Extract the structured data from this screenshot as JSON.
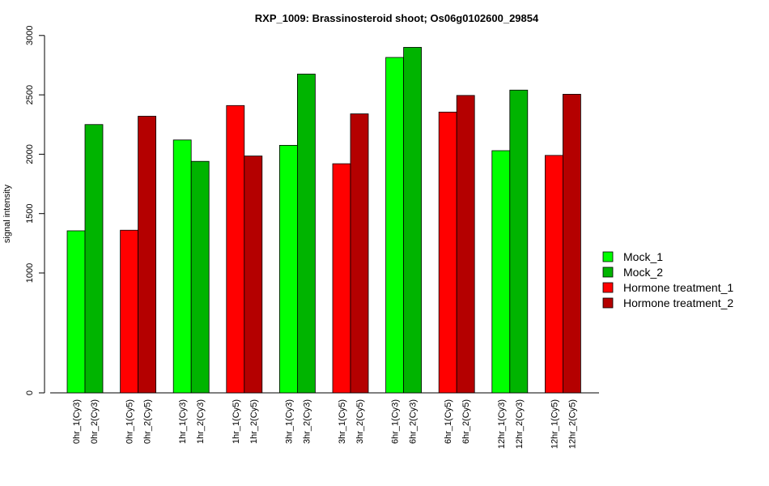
{
  "chart_data": {
    "type": "bar",
    "title": "RXP_1009: Brassinosteroid shoot; Os06g0102600_29854",
    "xlabel": "",
    "ylabel": "signal intensity",
    "ylim": [
      0,
      3000
    ],
    "y_ticks": [
      "0",
      "1000",
      "1500",
      "2000",
      "2500",
      "3000"
    ],
    "grid": false,
    "legend_position": "right",
    "series": [
      {
        "name": "Mock_1",
        "color": "#00ff00"
      },
      {
        "name": "Mock_2",
        "color": "#00b400"
      },
      {
        "name": "Hormone treatment_1",
        "color": "#ff0000"
      },
      {
        "name": "Hormone treatment_2",
        "color": "#b40000"
      }
    ],
    "groups": [
      {
        "bars": [
          {
            "label": "0hr_1(Cy3)",
            "value": 1355,
            "series": 0
          },
          {
            "label": "0hr_2(Cy3)",
            "value": 2250,
            "series": 1
          }
        ]
      },
      {
        "bars": [
          {
            "label": "0hr_1(Cy5)",
            "value": 1360,
            "series": 2
          },
          {
            "label": "0hr_2(Cy5)",
            "value": 2320,
            "series": 3
          }
        ]
      },
      {
        "bars": [
          {
            "label": "1hr_1(Cy3)",
            "value": 2120,
            "series": 0
          },
          {
            "label": "1hr_2(Cy3)",
            "value": 1940,
            "series": 1
          }
        ]
      },
      {
        "bars": [
          {
            "label": "1hr_1(Cy5)",
            "value": 2410,
            "series": 2
          },
          {
            "label": "1hr_2(Cy5)",
            "value": 1985,
            "series": 3
          }
        ]
      },
      {
        "bars": [
          {
            "label": "3hr_1(Cy3)",
            "value": 2075,
            "series": 0
          },
          {
            "label": "3hr_2(Cy3)",
            "value": 2675,
            "series": 1
          }
        ]
      },
      {
        "bars": [
          {
            "label": "3hr_1(Cy5)",
            "value": 1920,
            "series": 2
          },
          {
            "label": "3hr_2(Cy5)",
            "value": 2340,
            "series": 3
          }
        ]
      },
      {
        "bars": [
          {
            "label": "6hr_1(Cy3)",
            "value": 2815,
            "series": 0
          },
          {
            "label": "6hr_2(Cy3)",
            "value": 2900,
            "series": 1
          }
        ]
      },
      {
        "bars": [
          {
            "label": "6hr_1(Cy5)",
            "value": 2355,
            "series": 2
          },
          {
            "label": "6hr_2(Cy5)",
            "value": 2495,
            "series": 3
          }
        ]
      },
      {
        "bars": [
          {
            "label": "12hr_1(Cy3)",
            "value": 2030,
            "series": 0
          },
          {
            "label": "12hr_2(Cy3)",
            "value": 2540,
            "series": 1
          }
        ]
      },
      {
        "bars": [
          {
            "label": "12hr_1(Cy5)",
            "value": 1990,
            "series": 2
          },
          {
            "label": "12hr_2(Cy5)",
            "value": 2505,
            "series": 3
          }
        ]
      }
    ]
  }
}
